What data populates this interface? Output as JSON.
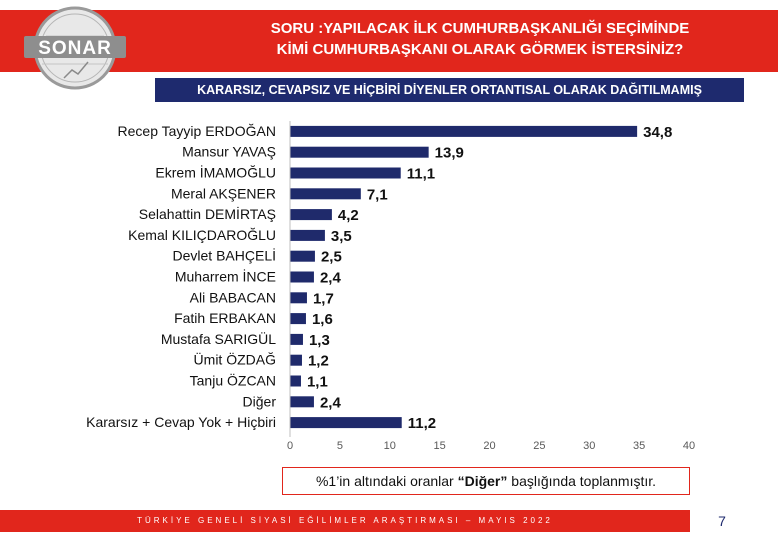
{
  "header": {
    "title_line1": "SORU :YAPILACAK İLK CUMHURBAŞKANLIĞI SEÇİMİNDE",
    "title_line2": "KİMİ CUMHURBAŞKANI OLARAK GÖRMEK İSTERSİNİZ?",
    "logo_text": "SONAR"
  },
  "subtitle": "KARARSIZ, CEVAPSIZ VE HİÇBİRİ DİYENLER ORTANTISAL OLARAK DAĞITILMAMIŞ",
  "chart_data": {
    "type": "bar",
    "orientation": "horizontal",
    "categories": [
      "Recep Tayyip ERDOĞAN",
      "Mansur YAVAŞ",
      "Ekrem İMAMOĞLU",
      "Meral AKŞENER",
      "Selahattin DEMİRTAŞ",
      "Kemal KILIÇDAROĞLU",
      "Devlet BAHÇELİ",
      "Muharrem İNCE",
      "Ali BABACAN",
      "Fatih ERBAKAN",
      "Mustafa SARIGÜL",
      "Ümit ÖZDAĞ",
      "Tanju ÖZCAN",
      "Diğer",
      "Kararsız + Cevap Yok + Hiçbiri"
    ],
    "values": [
      34.8,
      13.9,
      11.1,
      7.1,
      4.2,
      3.5,
      2.5,
      2.4,
      1.7,
      1.6,
      1.3,
      1.2,
      1.1,
      2.4,
      11.2
    ],
    "value_labels": [
      "34,8",
      "13,9",
      "11,1",
      "7,1",
      "4,2",
      "3,5",
      "2,5",
      "2,4",
      "1,7",
      "1,6",
      "1,3",
      "1,2",
      "1,1",
      "2,4",
      "11,2"
    ],
    "xlim": [
      0,
      40
    ],
    "xticks": [
      "0",
      "5",
      "10",
      "15",
      "20",
      "25",
      "30",
      "35",
      "40"
    ],
    "bar_color": "#1f2a6b",
    "grid": false
  },
  "note": {
    "prefix": "%1’in altındaki oranlar ",
    "emphasis": "“Diğer”",
    "suffix": " başlığında toplanmıştır."
  },
  "footer": {
    "text": "TÜRKİYE GENELİ SİYASİ EĞİLİMLER ARAŞTIRMASI – MAYIS 2022",
    "page_number": "7"
  },
  "colors": {
    "accent_red": "#e1261c",
    "navy": "#1e2a6e"
  }
}
